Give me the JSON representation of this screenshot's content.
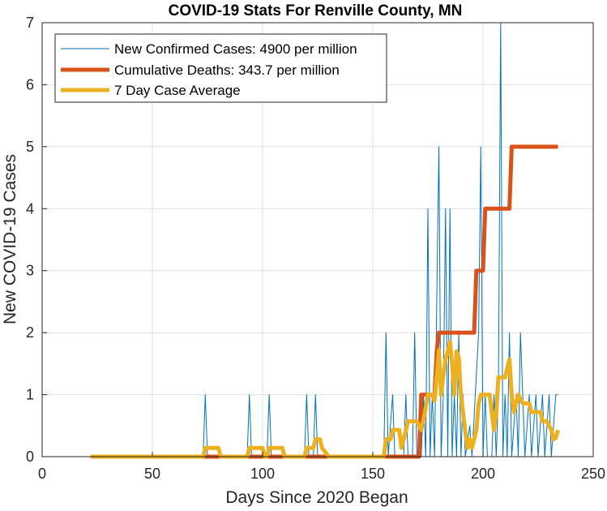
{
  "chart_data": {
    "type": "line",
    "title": "COVID-19 Stats For Renville County, MN",
    "xlabel": "Days Since 2020 Began",
    "ylabel": "New COVID-19 Cases",
    "xlim": [
      0,
      250
    ],
    "ylim": [
      0,
      7
    ],
    "xticks": [
      0,
      50,
      100,
      150,
      200,
      250
    ],
    "yticks": [
      0,
      1,
      2,
      3,
      4,
      5,
      6,
      7
    ],
    "grid": true,
    "legend_position": "top-left",
    "series": [
      {
        "name": "New Confirmed Cases: 4900 per million",
        "color": "#0072BD",
        "linewidth": 1,
        "points": [
          [
            22,
            0
          ],
          [
            73,
            0
          ],
          [
            74,
            1
          ],
          [
            75,
            0
          ],
          [
            93,
            0
          ],
          [
            94,
            1
          ],
          [
            95,
            0
          ],
          [
            102,
            0
          ],
          [
            103,
            1
          ],
          [
            104,
            0
          ],
          [
            119,
            0
          ],
          [
            120,
            1
          ],
          [
            121,
            0
          ],
          [
            123,
            0
          ],
          [
            124,
            1
          ],
          [
            125,
            0
          ],
          [
            155,
            0
          ],
          [
            156,
            2
          ],
          [
            157,
            0
          ],
          [
            159,
            1
          ],
          [
            160,
            0
          ],
          [
            164,
            0
          ],
          [
            165,
            1
          ],
          [
            166,
            0
          ],
          [
            168,
            0
          ],
          [
            169,
            2
          ],
          [
            170,
            0
          ],
          [
            172,
            0
          ],
          [
            173,
            1
          ],
          [
            174,
            0
          ],
          [
            175,
            4
          ],
          [
            176,
            0
          ],
          [
            177,
            1
          ],
          [
            178,
            0
          ],
          [
            180,
            5
          ],
          [
            181,
            0
          ],
          [
            182,
            1
          ],
          [
            183,
            4
          ],
          [
            184,
            0
          ],
          [
            185,
            4
          ],
          [
            186,
            0
          ],
          [
            187,
            1
          ],
          [
            188,
            0
          ],
          [
            189,
            2
          ],
          [
            190,
            0
          ],
          [
            191,
            1
          ],
          [
            192,
            0
          ],
          [
            194,
            0.5
          ],
          [
            195,
            0
          ],
          [
            198,
            2
          ],
          [
            199,
            5
          ],
          [
            200,
            0
          ],
          [
            201,
            1
          ],
          [
            202,
            0
          ],
          [
            204,
            0
          ],
          [
            205,
            1
          ],
          [
            206,
            0
          ],
          [
            207,
            1
          ],
          [
            208,
            7
          ],
          [
            209,
            0
          ],
          [
            210,
            1
          ],
          [
            211,
            0
          ],
          [
            212,
            2
          ],
          [
            213,
            0
          ],
          [
            215,
            1
          ],
          [
            216,
            0
          ],
          [
            217,
            2
          ],
          [
            218,
            1
          ],
          [
            219,
            0
          ],
          [
            221,
            1
          ],
          [
            222,
            0
          ],
          [
            224,
            1
          ],
          [
            225,
            0
          ],
          [
            227,
            1
          ],
          [
            228,
            0
          ],
          [
            230,
            1
          ],
          [
            231,
            0
          ],
          [
            233,
            1
          ],
          [
            234,
            1
          ]
        ]
      },
      {
        "name": "Cumulative Deaths: 343.7 per million",
        "color": "#D95319",
        "linewidth": 5,
        "points": [
          [
            22,
            0
          ],
          [
            171,
            0
          ],
          [
            172,
            1
          ],
          [
            178,
            1
          ],
          [
            179,
            1.7
          ],
          [
            180,
            2
          ],
          [
            196,
            2
          ],
          [
            197,
            3
          ],
          [
            200,
            3
          ],
          [
            201,
            4
          ],
          [
            212,
            4
          ],
          [
            213,
            5
          ],
          [
            234,
            5
          ]
        ]
      },
      {
        "name": "7 Day Case Average",
        "color": "#EDB120",
        "linewidth": 5,
        "points": [
          [
            22,
            0
          ],
          [
            73,
            0
          ],
          [
            74,
            0.14
          ],
          [
            80,
            0.14
          ],
          [
            81,
            0
          ],
          [
            93,
            0
          ],
          [
            94,
            0.14
          ],
          [
            100,
            0.14
          ],
          [
            101,
            0
          ],
          [
            102,
            0
          ],
          [
            103,
            0.14
          ],
          [
            109,
            0.14
          ],
          [
            110,
            0
          ],
          [
            119,
            0
          ],
          [
            120,
            0.14
          ],
          [
            123,
            0.14
          ],
          [
            124,
            0.28
          ],
          [
            126,
            0.28
          ],
          [
            127,
            0.14
          ],
          [
            130,
            0
          ],
          [
            155,
            0
          ],
          [
            156,
            0.28
          ],
          [
            158,
            0.28
          ],
          [
            159,
            0.43
          ],
          [
            162,
            0.43
          ],
          [
            163,
            0.14
          ],
          [
            164,
            0.28
          ],
          [
            166,
            0.57
          ],
          [
            170,
            0.57
          ],
          [
            172,
            0.43
          ],
          [
            173,
            0.6
          ],
          [
            175,
            1.0
          ],
          [
            177,
            1.0
          ],
          [
            178,
            0.9
          ],
          [
            179,
            1.3
          ],
          [
            180,
            1.72
          ],
          [
            181,
            1.0
          ],
          [
            182,
            1.3
          ],
          [
            183,
            1.57
          ],
          [
            184,
            1.7
          ],
          [
            185,
            1.85
          ],
          [
            186,
            1.5
          ],
          [
            187,
            1.0
          ],
          [
            188,
            1.7
          ],
          [
            189,
            1.6
          ],
          [
            190,
            1.0
          ],
          [
            191,
            0.7
          ],
          [
            192,
            0.4
          ],
          [
            193,
            0.14
          ],
          [
            194,
            0.28
          ],
          [
            195,
            0.14
          ],
          [
            197,
            0.43
          ],
          [
            198,
            0.86
          ],
          [
            199,
            1.0
          ],
          [
            203,
            1.0
          ],
          [
            204,
            0.7
          ],
          [
            205,
            0.43
          ],
          [
            206,
            0.7
          ],
          [
            207,
            1.28
          ],
          [
            210,
            1.28
          ],
          [
            211,
            1.43
          ],
          [
            212,
            1.57
          ],
          [
            213,
            1.0
          ],
          [
            214,
            0.72
          ],
          [
            215,
            0.86
          ],
          [
            216,
            1.0
          ],
          [
            218,
            0.86
          ],
          [
            221,
            0.86
          ],
          [
            222,
            0.72
          ],
          [
            226,
            0.72
          ],
          [
            227,
            0.57
          ],
          [
            229,
            0.57
          ],
          [
            231,
            0.43
          ],
          [
            232,
            0.28
          ],
          [
            233,
            0.3
          ],
          [
            234,
            0.43
          ]
        ]
      }
    ]
  }
}
